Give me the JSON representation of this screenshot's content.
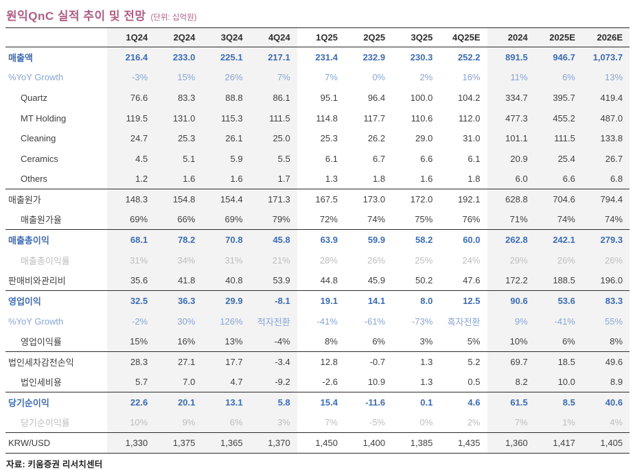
{
  "title": "원익QnC 실적 추이 및 전망",
  "title_unit": "(단위: 십억원)",
  "source": "자료: 키움증권 리서치센터",
  "colors": {
    "accent_title": "#ad5e84",
    "primary_blue": "#3c6cb4",
    "light_blue": "#87a4d4",
    "muted_gray": "#bdbdbd",
    "band_bg": "#f3f3f3",
    "rule_color": "#2a2a2a"
  },
  "table": {
    "columns": [
      "1Q24",
      "2Q24",
      "3Q24",
      "4Q24",
      "1Q25",
      "2Q25",
      "3Q25",
      "4Q25E",
      "2024",
      "2025E",
      "2026E"
    ],
    "banded_columns": [
      0,
      1,
      2,
      3,
      8,
      9,
      10
    ],
    "rows": [
      {
        "label": "매출액",
        "emphasis": "primary",
        "indent": false,
        "separator_above": false,
        "values": [
          "216.4",
          "233.0",
          "225.1",
          "217.1",
          "231.4",
          "232.9",
          "230.3",
          "252.2",
          "891.5",
          "946.7",
          "1,073.7"
        ]
      },
      {
        "label": "%YoY Growth",
        "emphasis": "yoy",
        "indent": false,
        "separator_above": false,
        "values": [
          "-3%",
          "15%",
          "26%",
          "7%",
          "7%",
          "0%",
          "2%",
          "16%",
          "11%",
          "6%",
          "13%"
        ]
      },
      {
        "label": "Quartz",
        "emphasis": "normal",
        "indent": true,
        "separator_above": false,
        "values": [
          "76.6",
          "83.3",
          "88.8",
          "86.1",
          "95.1",
          "96.4",
          "100.0",
          "104.2",
          "334.7",
          "395.7",
          "419.4"
        ]
      },
      {
        "label": "MT Holding",
        "emphasis": "normal",
        "indent": true,
        "separator_above": false,
        "values": [
          "119.5",
          "131.0",
          "115.3",
          "111.5",
          "114.8",
          "117.7",
          "110.6",
          "112.0",
          "477.3",
          "455.2",
          "487.0"
        ]
      },
      {
        "label": "Cleaning",
        "emphasis": "normal",
        "indent": true,
        "separator_above": false,
        "values": [
          "24.7",
          "25.3",
          "26.1",
          "25.0",
          "25.3",
          "26.2",
          "29.0",
          "31.0",
          "101.1",
          "111.5",
          "133.8"
        ]
      },
      {
        "label": "Ceramics",
        "emphasis": "normal",
        "indent": true,
        "separator_above": false,
        "values": [
          "4.5",
          "5.1",
          "5.9",
          "5.5",
          "6.1",
          "6.7",
          "6.6",
          "6.1",
          "20.9",
          "25.4",
          "26.7"
        ]
      },
      {
        "label": "Others",
        "emphasis": "normal",
        "indent": true,
        "separator_above": false,
        "values": [
          "1.2",
          "1.6",
          "1.6",
          "1.7",
          "1.3",
          "1.8",
          "1.6",
          "1.8",
          "6.0",
          "6.6",
          "6.8"
        ]
      },
      {
        "label": "매출원가",
        "emphasis": "normal",
        "indent": false,
        "separator_above": true,
        "values": [
          "148.3",
          "154.8",
          "154.4",
          "171.3",
          "167.5",
          "173.0",
          "172.0",
          "192.1",
          "628.8",
          "704.6",
          "794.4"
        ]
      },
      {
        "label": "매출원가율",
        "emphasis": "normal",
        "indent": true,
        "separator_above": false,
        "values": [
          "69%",
          "66%",
          "69%",
          "79%",
          "72%",
          "74%",
          "75%",
          "76%",
          "71%",
          "74%",
          "74%"
        ]
      },
      {
        "label": "매출총이익",
        "emphasis": "primary",
        "indent": false,
        "separator_above": true,
        "values": [
          "68.1",
          "78.2",
          "70.8",
          "45.8",
          "63.9",
          "59.9",
          "58.2",
          "60.0",
          "262.8",
          "242.1",
          "279.3"
        ]
      },
      {
        "label": "매출총이익률",
        "emphasis": "muted",
        "indent": true,
        "separator_above": false,
        "values": [
          "31%",
          "34%",
          "31%",
          "21%",
          "28%",
          "26%",
          "25%",
          "24%",
          "29%",
          "26%",
          "26%"
        ]
      },
      {
        "label": "판매비와관리비",
        "emphasis": "normal",
        "indent": false,
        "separator_above": false,
        "values": [
          "35.6",
          "41.8",
          "40.8",
          "53.9",
          "44.8",
          "45.9",
          "50.2",
          "47.6",
          "172.2",
          "188.5",
          "196.0"
        ]
      },
      {
        "label": "영업이익",
        "emphasis": "primary",
        "indent": false,
        "separator_above": true,
        "values": [
          "32.5",
          "36.3",
          "29.9",
          "-8.1",
          "19.1",
          "14.1",
          "8.0",
          "12.5",
          "90.6",
          "53.6",
          "83.3"
        ]
      },
      {
        "label": "%YoY Growth",
        "emphasis": "yoy",
        "indent": false,
        "separator_above": false,
        "values": [
          "-2%",
          "30%",
          "126%",
          "적자전환",
          "-41%",
          "-61%",
          "-73%",
          "흑자전환",
          "9%",
          "-41%",
          "55%"
        ]
      },
      {
        "label": "영업이익률",
        "emphasis": "normal",
        "indent": true,
        "separator_above": false,
        "values": [
          "15%",
          "16%",
          "13%",
          "-4%",
          "8%",
          "6%",
          "3%",
          "5%",
          "10%",
          "6%",
          "8%"
        ]
      },
      {
        "label": "법인세차감전손익",
        "emphasis": "normal",
        "indent": false,
        "separator_above": true,
        "values": [
          "28.3",
          "27.1",
          "17.7",
          "-3.4",
          "12.8",
          "-0.7",
          "1.3",
          "5.2",
          "69.7",
          "18.5",
          "49.6"
        ]
      },
      {
        "label": "법인세비용",
        "emphasis": "normal",
        "indent": true,
        "separator_above": false,
        "values": [
          "5.7",
          "7.0",
          "4.7",
          "-9.2",
          "-2.6",
          "10.9",
          "1.3",
          "0.5",
          "8.2",
          "10.0",
          "8.9"
        ]
      },
      {
        "label": "당기순이익",
        "emphasis": "primary",
        "indent": false,
        "separator_above": true,
        "values": [
          "22.6",
          "20.1",
          "13.1",
          "5.8",
          "15.4",
          "-11.6",
          "0.1",
          "4.6",
          "61.5",
          "8.5",
          "40.6"
        ]
      },
      {
        "label": "당기순이익률",
        "emphasis": "muted",
        "indent": true,
        "separator_above": false,
        "values": [
          "10%",
          "9%",
          "6%",
          "3%",
          "7%",
          "-5%",
          "0%",
          "2%",
          "7%",
          "1%",
          "4%"
        ]
      },
      {
        "label": "KRW/USD",
        "emphasis": "normal",
        "indent": false,
        "separator_above": true,
        "values": [
          "1,330",
          "1,375",
          "1,365",
          "1,370",
          "1,450",
          "1,400",
          "1,385",
          "1,435",
          "1,360",
          "1,417",
          "1,405"
        ]
      }
    ]
  }
}
